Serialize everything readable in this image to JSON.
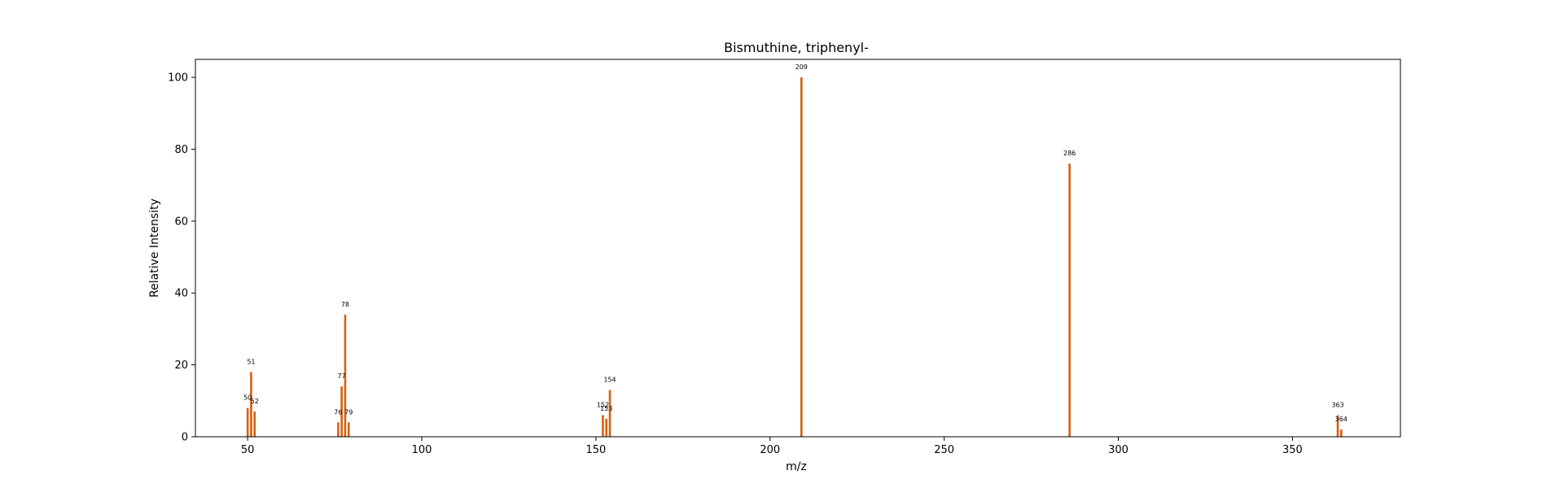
{
  "chart_data": {
    "type": "bar",
    "title": "Bismuthine, triphenyl-",
    "xlabel": "m/z",
    "ylabel": "Relative Intensity",
    "xlim": [
      35,
      381
    ],
    "ylim": [
      0,
      105
    ],
    "xticks": [
      50,
      100,
      150,
      200,
      250,
      300,
      350
    ],
    "yticks": [
      0,
      20,
      40,
      60,
      80,
      100
    ],
    "grid": false,
    "bar_color": "#d95f0e",
    "peaks": [
      {
        "mz": 50,
        "intensity": 8,
        "label": "50"
      },
      {
        "mz": 51,
        "intensity": 18,
        "label": "51"
      },
      {
        "mz": 52,
        "intensity": 7,
        "label": "52"
      },
      {
        "mz": 76,
        "intensity": 4,
        "label": "76"
      },
      {
        "mz": 77,
        "intensity": 14,
        "label": "77"
      },
      {
        "mz": 78,
        "intensity": 34,
        "label": "78"
      },
      {
        "mz": 79,
        "intensity": 4,
        "label": "79"
      },
      {
        "mz": 152,
        "intensity": 6,
        "label": "152"
      },
      {
        "mz": 153,
        "intensity": 5,
        "label": "153"
      },
      {
        "mz": 154,
        "intensity": 13,
        "label": "154"
      },
      {
        "mz": 209,
        "intensity": 100,
        "label": "209"
      },
      {
        "mz": 286,
        "intensity": 76,
        "label": "286"
      },
      {
        "mz": 363,
        "intensity": 6,
        "label": "363"
      },
      {
        "mz": 364,
        "intensity": 2,
        "label": "364"
      }
    ]
  }
}
